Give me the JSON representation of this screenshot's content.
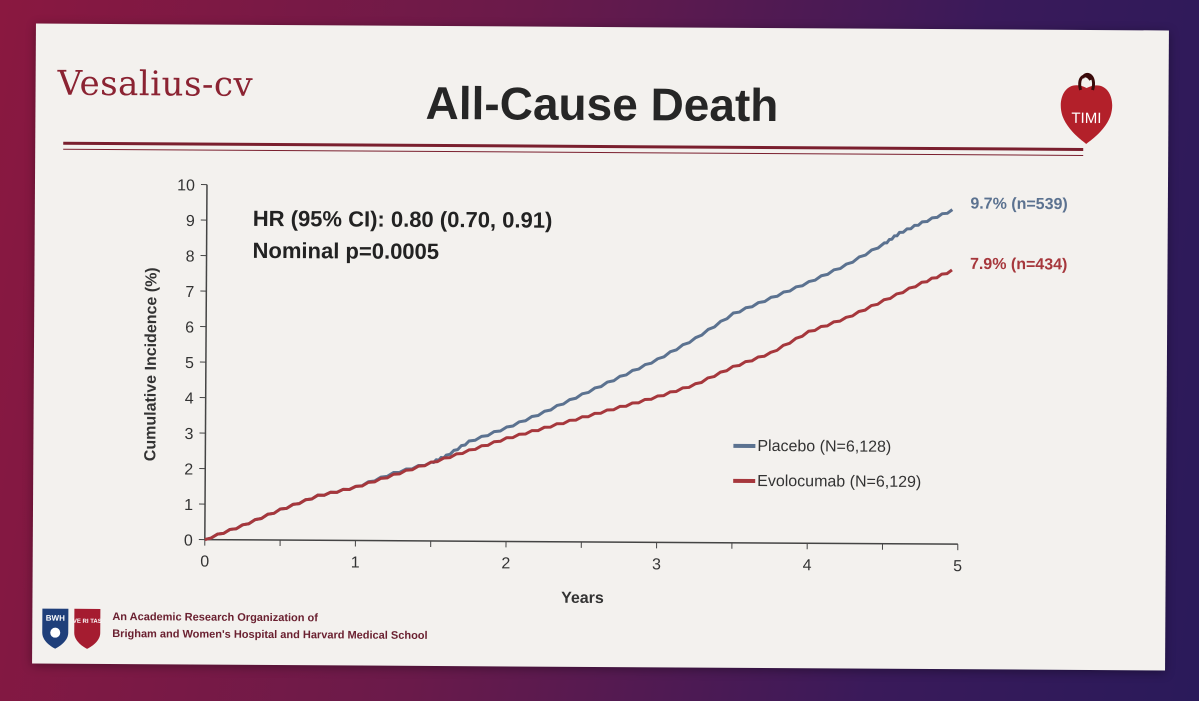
{
  "slide": {
    "logo_text": "Vesalius-cv",
    "title": "All-Cause Death",
    "timi_text": "TIMI",
    "footer_line1": "An Academic Research Organization of",
    "footer_line2": "Brigham and Women's Hospital and Harvard Medical School",
    "bwh_text": "BWH",
    "shield_text": "VE RI TAS"
  },
  "chart_data": {
    "type": "line",
    "title": "All-Cause Death",
    "xlabel": "Years",
    "ylabel": "Cumulative Incidence (%)",
    "xlim": [
      0,
      5
    ],
    "ylim": [
      0,
      10
    ],
    "xticks": [
      0,
      1,
      2,
      3,
      4,
      5
    ],
    "yticks": [
      0,
      1,
      2,
      3,
      4,
      5,
      6,
      7,
      8,
      9,
      10
    ],
    "annotation_line1": "HR (95% CI): 0.80 (0.70, 0.91)",
    "annotation_line2": "Nominal p=0.0005",
    "series": [
      {
        "name": "Placebo",
        "legend": "Placebo (N=6,128)",
        "color": "#5b7290",
        "end_label": "9.7% (n=539)",
        "x": [
          0,
          0.25,
          0.5,
          0.75,
          1.0,
          1.25,
          1.5,
          1.6,
          1.75,
          2.0,
          2.25,
          2.5,
          2.75,
          3.0,
          3.25,
          3.5,
          3.75,
          4.0,
          4.25,
          4.5,
          4.6,
          4.75,
          4.95
        ],
        "y": [
          0,
          0.4,
          0.85,
          1.25,
          1.5,
          1.9,
          2.2,
          2.4,
          2.8,
          3.2,
          3.65,
          4.15,
          4.65,
          5.15,
          5.75,
          6.45,
          6.9,
          7.35,
          7.85,
          8.45,
          8.75,
          9.05,
          9.4
        ]
      },
      {
        "name": "Evolocumab",
        "legend": "Evolocumab (N=6,129)",
        "color": "#a6373c",
        "end_label": "7.9% (n=434)",
        "x": [
          0,
          0.25,
          0.5,
          0.75,
          1.0,
          1.25,
          1.5,
          1.75,
          2.0,
          2.25,
          2.5,
          2.75,
          3.0,
          3.25,
          3.5,
          3.75,
          4.0,
          4.25,
          4.5,
          4.75,
          4.95
        ],
        "y": [
          0,
          0.4,
          0.85,
          1.25,
          1.5,
          1.85,
          2.2,
          2.55,
          2.9,
          3.2,
          3.5,
          3.8,
          4.1,
          4.45,
          4.95,
          5.35,
          5.95,
          6.35,
          6.85,
          7.35,
          7.7
        ]
      }
    ]
  }
}
